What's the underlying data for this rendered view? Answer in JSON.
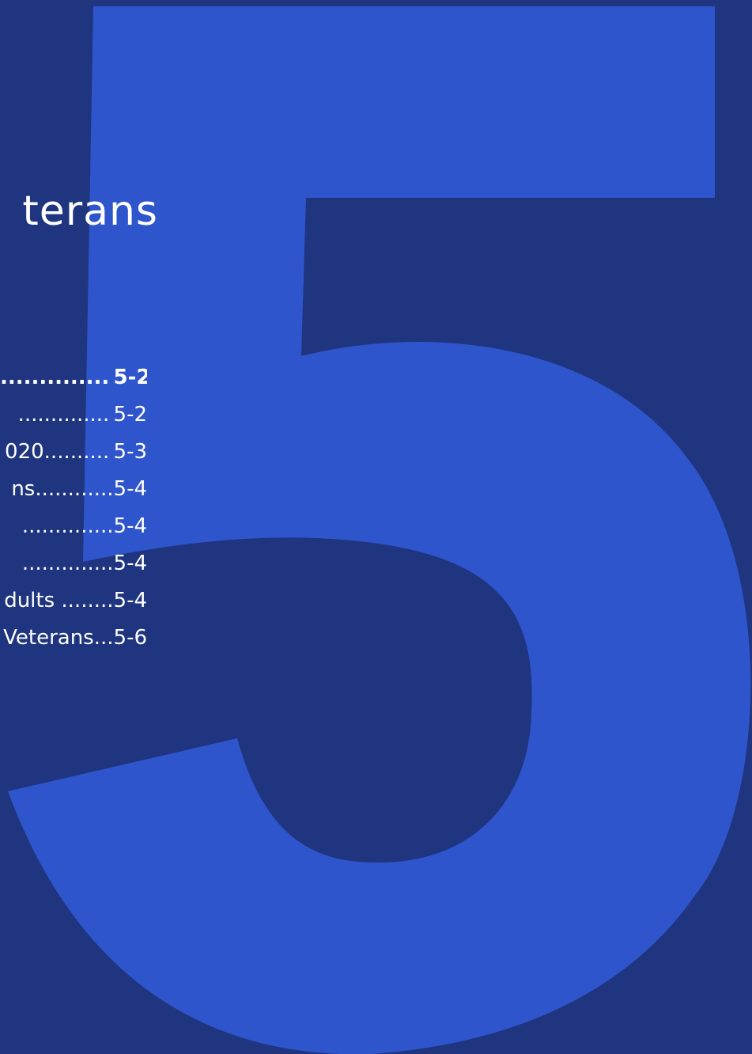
{
  "chapter": {
    "number": "5",
    "title_fragment": "terans"
  },
  "toc": [
    {
      "text": "",
      "dots": "..............",
      "page": "5-2",
      "active": true
    },
    {
      "text": "",
      "dots": "..............",
      "page": "5-2",
      "active": false
    },
    {
      "text": "020",
      "dots": "..........",
      "page": "5-3",
      "active": false
    },
    {
      "text": "ns",
      "dots": "............",
      "page": "5-4",
      "active": false
    },
    {
      "text": "",
      "dots": "..............",
      "page": "5-4",
      "active": false
    },
    {
      "text": "",
      "dots": "..............",
      "page": "5-4",
      "active": false
    },
    {
      "text": "dults ",
      "dots": "........",
      "page": "5-4",
      "active": false
    },
    {
      "text": "Veterans",
      "dots": "...",
      "page": "5-6",
      "active": false
    }
  ],
  "colors": {
    "background": "#1f357f",
    "numeral": "#2f55cc",
    "text": "#ffffff"
  }
}
